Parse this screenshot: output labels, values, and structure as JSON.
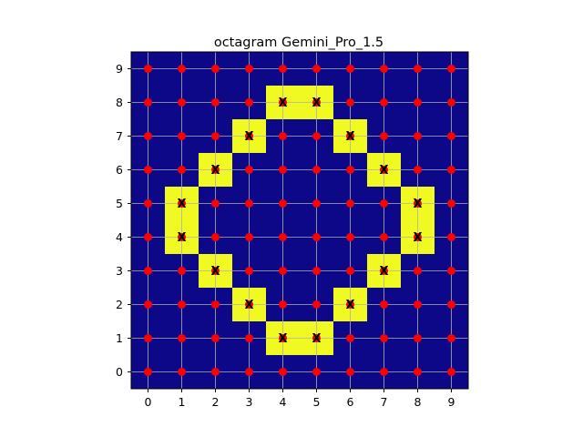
{
  "chart_data": {
    "type": "heatmap",
    "title": "octagram Gemini_Pro_1.5",
    "xlabel": "",
    "ylabel": "",
    "xlim": [
      -0.5,
      9.5
    ],
    "ylim": [
      -0.5,
      9.5
    ],
    "x_ticks": [
      "0",
      "1",
      "2",
      "3",
      "4",
      "5",
      "6",
      "7",
      "8",
      "9"
    ],
    "y_ticks": [
      "0",
      "1",
      "2",
      "3",
      "4",
      "5",
      "6",
      "7",
      "8",
      "9"
    ],
    "grid": true,
    "colors": {
      "background": "#0d0887",
      "highlight": "#f0f921",
      "point": "#ff0000",
      "grid": "#b0b0b0"
    },
    "grid_points": {
      "x": [
        0,
        1,
        2,
        3,
        4,
        5,
        6,
        7,
        8,
        9
      ],
      "y": [
        0,
        1,
        2,
        3,
        4,
        5,
        6,
        7,
        8,
        9
      ],
      "marker": "red-dot"
    },
    "highlighted_cells": [
      {
        "x": 4,
        "y": 8,
        "label": "X"
      },
      {
        "x": 5,
        "y": 8,
        "label": "X"
      },
      {
        "x": 3,
        "y": 7,
        "label": "X"
      },
      {
        "x": 6,
        "y": 7,
        "label": "X"
      },
      {
        "x": 2,
        "y": 6,
        "label": "X"
      },
      {
        "x": 7,
        "y": 6,
        "label": "X"
      },
      {
        "x": 1,
        "y": 5,
        "label": "X"
      },
      {
        "x": 8,
        "y": 5,
        "label": "X"
      },
      {
        "x": 1,
        "y": 4,
        "label": "X"
      },
      {
        "x": 8,
        "y": 4,
        "label": "X"
      },
      {
        "x": 2,
        "y": 3,
        "label": "X"
      },
      {
        "x": 7,
        "y": 3,
        "label": "X"
      },
      {
        "x": 3,
        "y": 2,
        "label": "X"
      },
      {
        "x": 6,
        "y": 2,
        "label": "X"
      },
      {
        "x": 4,
        "y": 1,
        "label": "X"
      },
      {
        "x": 5,
        "y": 1,
        "label": "X"
      }
    ]
  }
}
